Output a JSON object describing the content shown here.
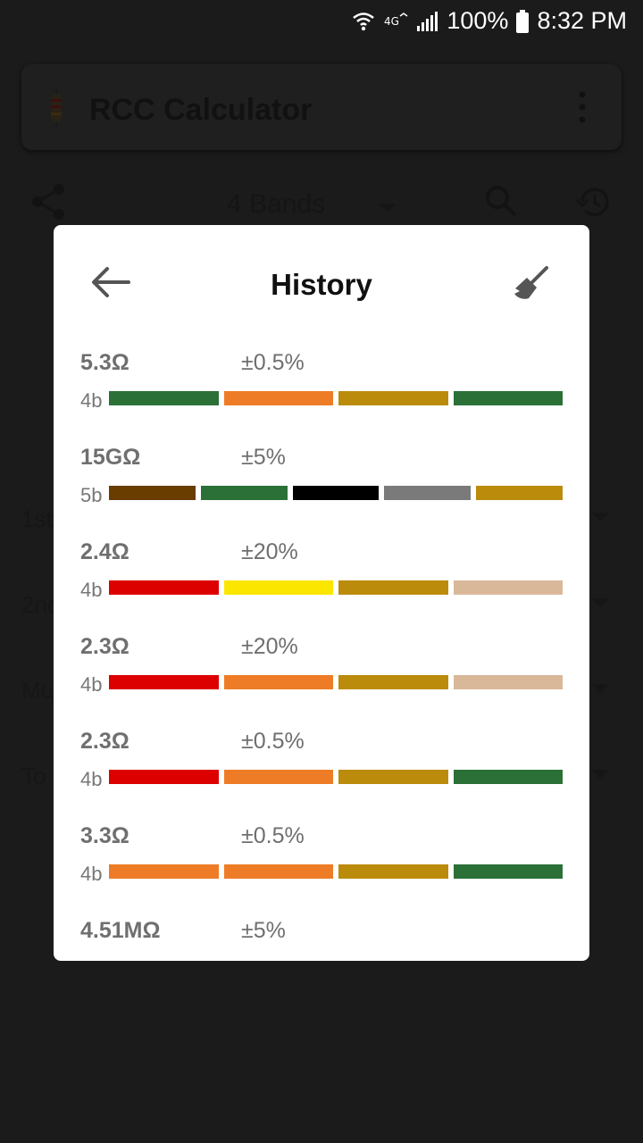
{
  "status_bar": {
    "battery": "100%",
    "time": "8:32 PM"
  },
  "app": {
    "title": "RCC Calculator",
    "bands_selected": "4 Bands",
    "rows": [
      "1st",
      "2nd",
      "Mu",
      "To"
    ]
  },
  "dialog": {
    "title": "History",
    "entries": [
      {
        "value": "5.3Ω",
        "tolerance": "±0.5%",
        "band_count": "4b",
        "bands": [
          "#2a7037",
          "#ee7c26",
          "#bb8b0c",
          "#2a7037"
        ]
      },
      {
        "value": "15GΩ",
        "tolerance": "±5%",
        "band_count": "5b",
        "bands": [
          "#693c00",
          "#2a7037",
          "#000000",
          "#7a7a7a",
          "#bb8b0c"
        ]
      },
      {
        "value": "2.4Ω",
        "tolerance": "±20%",
        "band_count": "4b",
        "bands": [
          "#dd0000",
          "#fbe600",
          "#bb8b0c",
          "#d9b89a"
        ]
      },
      {
        "value": "2.3Ω",
        "tolerance": "±20%",
        "band_count": "4b",
        "bands": [
          "#dd0000",
          "#ee7c26",
          "#bb8b0c",
          "#d9b89a"
        ]
      },
      {
        "value": "2.3Ω",
        "tolerance": "±0.5%",
        "band_count": "4b",
        "bands": [
          "#dd0000",
          "#ee7c26",
          "#bb8b0c",
          "#2a7037"
        ]
      },
      {
        "value": "3.3Ω",
        "tolerance": "±0.5%",
        "band_count": "4b",
        "bands": [
          "#ee7c26",
          "#ee7c26",
          "#bb8b0c",
          "#2a7037"
        ]
      },
      {
        "value": "4.51MΩ",
        "tolerance": "±5%",
        "band_count": "",
        "bands": []
      }
    ]
  }
}
